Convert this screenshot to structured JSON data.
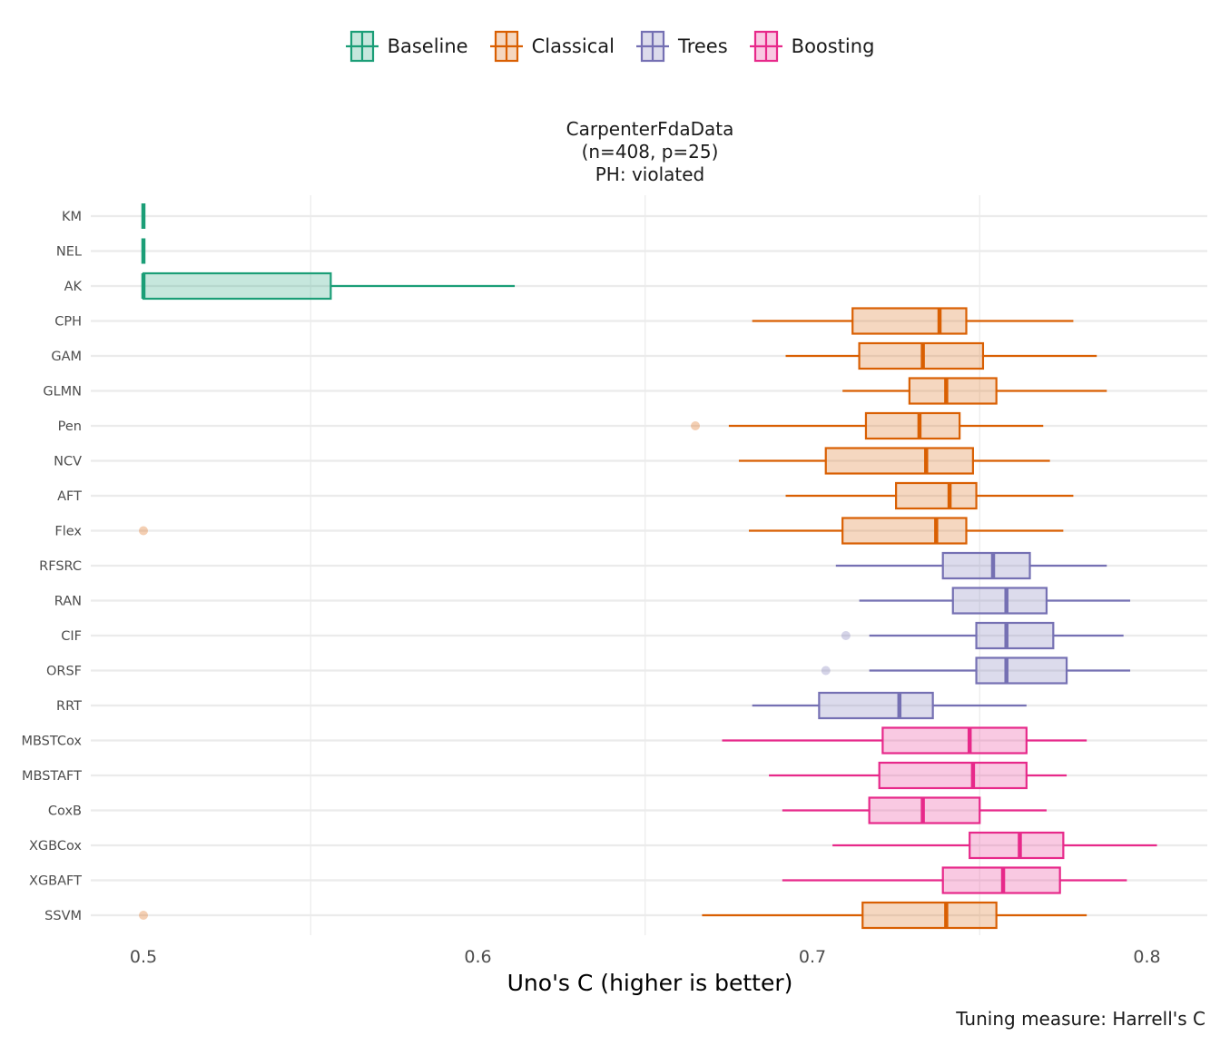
{
  "chart_data": {
    "type": "boxplot",
    "title": [
      "CarpenterFdaData",
      "(n=408, p=25)",
      "PH: violated"
    ],
    "xlabel": "Uno's C (higher is better)",
    "ylabel": "",
    "caption": "Tuning measure: Harrell's C",
    "xlim": [
      0.485,
      0.817
    ],
    "xticks": [
      "0.5",
      "0.6",
      "0.7",
      "0.8"
    ],
    "grid": true,
    "legend_position": "top",
    "groups": [
      {
        "name": "Baseline",
        "color": "#1b9e77"
      },
      {
        "name": "Classical",
        "color": "#d95f02"
      },
      {
        "name": "Trees",
        "color": "#7570b3"
      },
      {
        "name": "Boosting",
        "color": "#e7298a"
      }
    ],
    "boxes": [
      {
        "label": "KM",
        "group": "Baseline",
        "whisker_low": 0.5,
        "q1": 0.5,
        "median": 0.5,
        "q3": 0.5,
        "whisker_high": 0.5,
        "outliers": []
      },
      {
        "label": "NEL",
        "group": "Baseline",
        "whisker_low": 0.5,
        "q1": 0.5,
        "median": 0.5,
        "q3": 0.5,
        "whisker_high": 0.5,
        "outliers": []
      },
      {
        "label": "AK",
        "group": "Baseline",
        "whisker_low": 0.5,
        "q1": 0.5,
        "median": 0.5,
        "q3": 0.556,
        "whisker_high": 0.611,
        "outliers": []
      },
      {
        "label": "CPH",
        "group": "Classical",
        "whisker_low": 0.682,
        "q1": 0.712,
        "median": 0.738,
        "q3": 0.746,
        "whisker_high": 0.778,
        "outliers": []
      },
      {
        "label": "GAM",
        "group": "Classical",
        "whisker_low": 0.692,
        "q1": 0.714,
        "median": 0.733,
        "q3": 0.751,
        "whisker_high": 0.785,
        "outliers": []
      },
      {
        "label": "GLMN",
        "group": "Classical",
        "whisker_low": 0.709,
        "q1": 0.729,
        "median": 0.74,
        "q3": 0.755,
        "whisker_high": 0.788,
        "outliers": []
      },
      {
        "label": "Pen",
        "group": "Classical",
        "whisker_low": 0.675,
        "q1": 0.716,
        "median": 0.732,
        "q3": 0.744,
        "whisker_high": 0.769,
        "outliers": [
          0.665
        ]
      },
      {
        "label": "NCV",
        "group": "Classical",
        "whisker_low": 0.678,
        "q1": 0.704,
        "median": 0.734,
        "q3": 0.748,
        "whisker_high": 0.771,
        "outliers": []
      },
      {
        "label": "AFT",
        "group": "Classical",
        "whisker_low": 0.692,
        "q1": 0.725,
        "median": 0.741,
        "q3": 0.749,
        "whisker_high": 0.778,
        "outliers": []
      },
      {
        "label": "Flex",
        "group": "Classical",
        "whisker_low": 0.681,
        "q1": 0.709,
        "median": 0.737,
        "q3": 0.746,
        "whisker_high": 0.775,
        "outliers": [
          0.5
        ]
      },
      {
        "label": "RFSRC",
        "group": "Trees",
        "whisker_low": 0.707,
        "q1": 0.739,
        "median": 0.754,
        "q3": 0.765,
        "whisker_high": 0.788,
        "outliers": []
      },
      {
        "label": "RAN",
        "group": "Trees",
        "whisker_low": 0.714,
        "q1": 0.742,
        "median": 0.758,
        "q3": 0.77,
        "whisker_high": 0.795,
        "outliers": []
      },
      {
        "label": "CIF",
        "group": "Trees",
        "whisker_low": 0.717,
        "q1": 0.749,
        "median": 0.758,
        "q3": 0.772,
        "whisker_high": 0.793,
        "outliers": [
          0.71
        ]
      },
      {
        "label": "ORSF",
        "group": "Trees",
        "whisker_low": 0.717,
        "q1": 0.749,
        "median": 0.758,
        "q3": 0.776,
        "whisker_high": 0.795,
        "outliers": [
          0.704
        ]
      },
      {
        "label": "RRT",
        "group": "Trees",
        "whisker_low": 0.682,
        "q1": 0.702,
        "median": 0.726,
        "q3": 0.736,
        "whisker_high": 0.764,
        "outliers": []
      },
      {
        "label": "MBSTCox",
        "group": "Boosting",
        "whisker_low": 0.673,
        "q1": 0.721,
        "median": 0.747,
        "q3": 0.764,
        "whisker_high": 0.782,
        "outliers": []
      },
      {
        "label": "MBSTAFT",
        "group": "Boosting",
        "whisker_low": 0.687,
        "q1": 0.72,
        "median": 0.748,
        "q3": 0.764,
        "whisker_high": 0.776,
        "outliers": []
      },
      {
        "label": "CoxB",
        "group": "Boosting",
        "whisker_low": 0.691,
        "q1": 0.717,
        "median": 0.733,
        "q3": 0.75,
        "whisker_high": 0.77,
        "outliers": []
      },
      {
        "label": "XGBCox",
        "group": "Boosting",
        "whisker_low": 0.706,
        "q1": 0.747,
        "median": 0.762,
        "q3": 0.775,
        "whisker_high": 0.803,
        "outliers": []
      },
      {
        "label": "XGBAFT",
        "group": "Boosting",
        "whisker_low": 0.691,
        "q1": 0.739,
        "median": 0.757,
        "q3": 0.774,
        "whisker_high": 0.794,
        "outliers": []
      },
      {
        "label": "SSVM",
        "group": "Classical",
        "whisker_low": 0.667,
        "q1": 0.715,
        "median": 0.74,
        "q3": 0.755,
        "whisker_high": 0.782,
        "outliers": [
          0.5
        ]
      }
    ]
  }
}
